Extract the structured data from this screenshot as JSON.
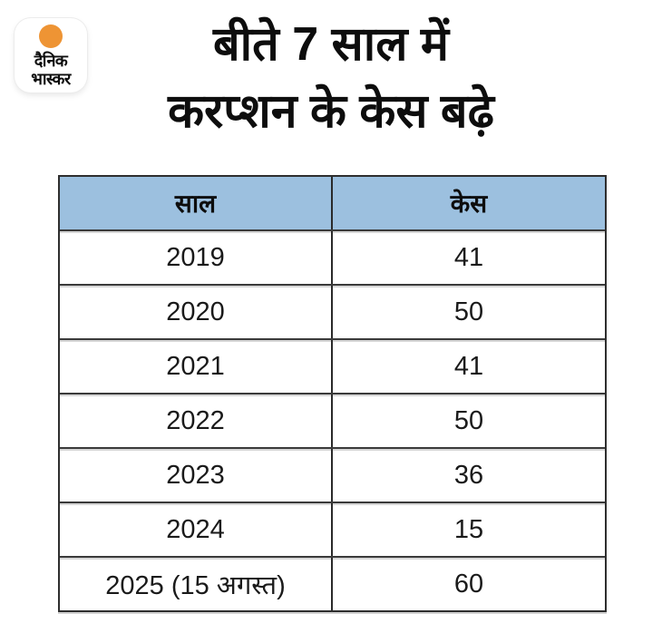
{
  "brand": {
    "name_line1": "दैनिक",
    "name_line2": "भास्कर"
  },
  "title": {
    "line1": "बीते 7 साल में",
    "line2": "करप्शन के केस बढ़े"
  },
  "chart_data": {
    "type": "table",
    "title": "बीते 7 साल में करप्शन के केस बढ़े",
    "columns": [
      "साल",
      "केस"
    ],
    "rows": [
      [
        "2019",
        "41"
      ],
      [
        "2020",
        "50"
      ],
      [
        "2021",
        "41"
      ],
      [
        "2022",
        "50"
      ],
      [
        "2023",
        "36"
      ],
      [
        "2024",
        "15"
      ],
      [
        "2025 (15 अगस्त)",
        "60"
      ]
    ],
    "years": [
      "2019",
      "2020",
      "2021",
      "2022",
      "2023",
      "2024",
      "2025 (15 अगस्त)"
    ],
    "cases": [
      41,
      50,
      41,
      50,
      36,
      15,
      60
    ]
  },
  "colors": {
    "background": "#ffffff",
    "header_bg": "#9cc0df",
    "logo_sun": "#ee9434",
    "border": "#2e2e2e",
    "text": "#111111"
  }
}
